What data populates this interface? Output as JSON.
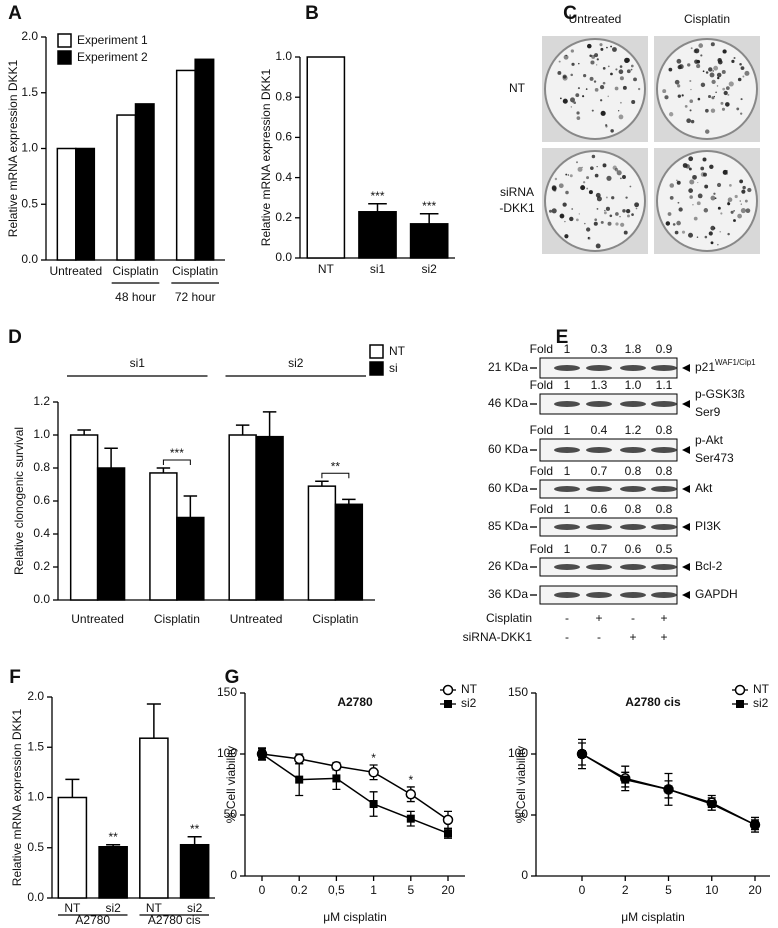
{
  "chart_data": [
    {
      "panel": "A",
      "type": "bar",
      "ylabel": "Relative mRNA expression DKK1",
      "categories": [
        "Untreated",
        "Cisplatin",
        "Cisplatin"
      ],
      "category_groups": [
        null,
        "48 hour",
        "72 hour"
      ],
      "series": [
        {
          "name": "Experiment 1",
          "color": "#ffffff",
          "values": [
            1.0,
            1.3,
            1.7
          ]
        },
        {
          "name": "Experiment 2",
          "color": "#000000",
          "values": [
            1.0,
            1.4,
            1.8
          ]
        }
      ],
      "ylim": [
        0,
        2
      ],
      "yticks": [
        {
          "value": 0,
          "label": "0.0"
        },
        0.5,
        {
          "value": 1,
          "label": "1.0"
        },
        1.5,
        {
          "value": 2,
          "label": "2.0"
        }
      ],
      "legend": "upper left"
    },
    {
      "panel": "B",
      "type": "bar",
      "ylabel": "Relative mRNA expression DKK1",
      "categories": [
        "NT",
        "si1",
        "si2"
      ],
      "values": [
        1.0,
        0.23,
        0.17
      ],
      "errors": [
        null,
        0.04,
        0.05
      ],
      "colors": [
        "#ffffff",
        "#000000",
        "#000000"
      ],
      "annotations": [
        null,
        "***",
        "***"
      ],
      "ylim": [
        0,
        1
      ],
      "yticks": [
        {
          "value": 0,
          "label": "0.0"
        },
        0.2,
        0.4,
        0.6,
        0.8,
        {
          "value": 1,
          "label": "1.0"
        }
      ]
    },
    {
      "panel": "D",
      "type": "bar",
      "ylabel": "Relative clonogenic survival",
      "categories": [
        "Untreated",
        "Cisplatin",
        "Untreated",
        "Cisplatin"
      ],
      "category_groups": [
        "si1",
        "si2"
      ],
      "series": [
        {
          "name": "NT",
          "color": "#ffffff",
          "values": [
            1.0,
            0.77,
            1.0,
            0.69
          ],
          "errors": [
            0.03,
            0.03,
            0.06,
            0.03
          ]
        },
        {
          "name": "si",
          "color": "#000000",
          "values": [
            0.8,
            0.5,
            0.99,
            0.58
          ],
          "errors": [
            0.12,
            0.13,
            0.15,
            0.03
          ]
        }
      ],
      "annotations": [
        null,
        "***",
        null,
        "**"
      ],
      "ylim": [
        0,
        1.2
      ],
      "yticks": [
        {
          "value": 0,
          "label": "0.0"
        },
        0.2,
        0.4,
        0.6,
        0.8,
        {
          "value": 1,
          "label": "1.0"
        },
        1.2
      ],
      "legend": "upper right"
    },
    {
      "panel": "F",
      "type": "bar",
      "ylabel": "Relative mRNA expression DKK1",
      "categories": [
        "NT",
        "si2",
        "NT",
        "si2"
      ],
      "category_groups": [
        "A2780",
        "A2780 cis"
      ],
      "values": [
        1.0,
        0.51,
        1.59,
        0.53
      ],
      "errors": [
        0.18,
        0.02,
        0.34,
        0.08
      ],
      "colors": [
        "#ffffff",
        "#000000",
        "#ffffff",
        "#000000"
      ],
      "annotations": [
        null,
        "**",
        null,
        "**"
      ],
      "ylim": [
        0,
        2
      ],
      "yticks": [
        {
          "value": 0,
          "label": "0.0"
        },
        0.5,
        {
          "value": 1,
          "label": "1.0"
        },
        1.5,
        {
          "value": 2,
          "label": "2.0"
        }
      ]
    },
    {
      "panel": "G",
      "type": "line",
      "title": "A2780",
      "xlabel": "μM cisplatin",
      "ylabel": "% Cell viability",
      "categories": [
        "0",
        "0.2",
        "0,5",
        "1",
        "5",
        "20"
      ],
      "series": [
        {
          "name": "NT",
          "color": "#000000",
          "marker": "open-circle",
          "values": [
            100,
            96,
            90,
            85,
            67,
            46
          ],
          "errors": [
            4,
            4,
            3,
            6,
            6,
            7
          ]
        },
        {
          "name": "si2",
          "color": "#000000",
          "marker": "square",
          "values": [
            100,
            79,
            80,
            59,
            47,
            35
          ],
          "errors": [
            5,
            13,
            9,
            10,
            6,
            4
          ]
        }
      ],
      "annotations": [
        null,
        null,
        null,
        "*",
        "*",
        null
      ],
      "ylim": [
        0,
        150
      ],
      "yticks": [
        0,
        50,
        100,
        150
      ],
      "legend": "upper right"
    },
    {
      "type": "line",
      "title": "A2780 cis",
      "xlabel": "μM cisplatin",
      "ylabel": "% Cell viability",
      "categories": [
        "0",
        "2",
        "5",
        "10",
        "20"
      ],
      "series": [
        {
          "name": "NT",
          "color": "#000000",
          "marker": "open-circle",
          "values": [
            100,
            80,
            71,
            60,
            42
          ],
          "errors": [
            12,
            10,
            13,
            6,
            6
          ]
        },
        {
          "name": "si2",
          "color": "#000000",
          "marker": "square",
          "values": [
            100,
            79,
            71,
            59,
            42
          ],
          "errors": [
            9,
            6,
            7,
            5,
            4
          ]
        }
      ],
      "ylim": [
        0,
        150
      ],
      "yticks": [
        0,
        50,
        100,
        150
      ],
      "legend": "upper right"
    }
  ],
  "panel_c": {
    "letter": "C",
    "columns": [
      "Untreated",
      "Cisplatin"
    ],
    "rows": [
      [
        "NT"
      ],
      [
        "siRNA",
        "-DKK1"
      ]
    ]
  },
  "panel_e": {
    "letter": "E",
    "rows": [
      {
        "fold_label": "Fold",
        "folds": [
          "1",
          "0.3",
          "1.8",
          "0.9"
        ],
        "size": "21 KDa",
        "protein": [
          "p21"
        ],
        "superscript": "WAF1/Cip1"
      },
      {
        "fold_label": "Fold",
        "folds": [
          "1",
          "1.3",
          "1.0",
          "1.1"
        ],
        "size": "46 KDa",
        "protein": [
          "p-GSK3ß",
          "Ser9"
        ]
      },
      {
        "fold_label": "Fold",
        "folds": [
          "1",
          "0.4",
          "1.2",
          "0.8"
        ],
        "size": "60 KDa",
        "protein": [
          "p-Akt",
          "Ser473"
        ]
      },
      {
        "fold_label": "Fold",
        "folds": [
          "1",
          "0.7",
          "0.8",
          "0.8"
        ],
        "size": "60 KDa",
        "protein": [
          "Akt"
        ]
      },
      {
        "fold_label": "Fold",
        "folds": [
          "1",
          "0.6",
          "0.8",
          "0.8"
        ],
        "size": "85 KDa",
        "protein": [
          "PI3K"
        ]
      },
      {
        "fold_label": "Fold",
        "folds": [
          "1",
          "0.7",
          "0.6",
          "0.5"
        ],
        "size": "26 KDa",
        "protein": [
          "Bcl-2"
        ]
      },
      {
        "size": "36 KDa",
        "protein": [
          "GAPDH"
        ]
      }
    ],
    "treatments": [
      {
        "name": "Cisplatin",
        "marks": [
          "-",
          "+",
          "-",
          "+"
        ]
      },
      {
        "name": "siRNA-DKK1",
        "marks": [
          "-",
          "-",
          "+",
          "+"
        ]
      }
    ]
  }
}
